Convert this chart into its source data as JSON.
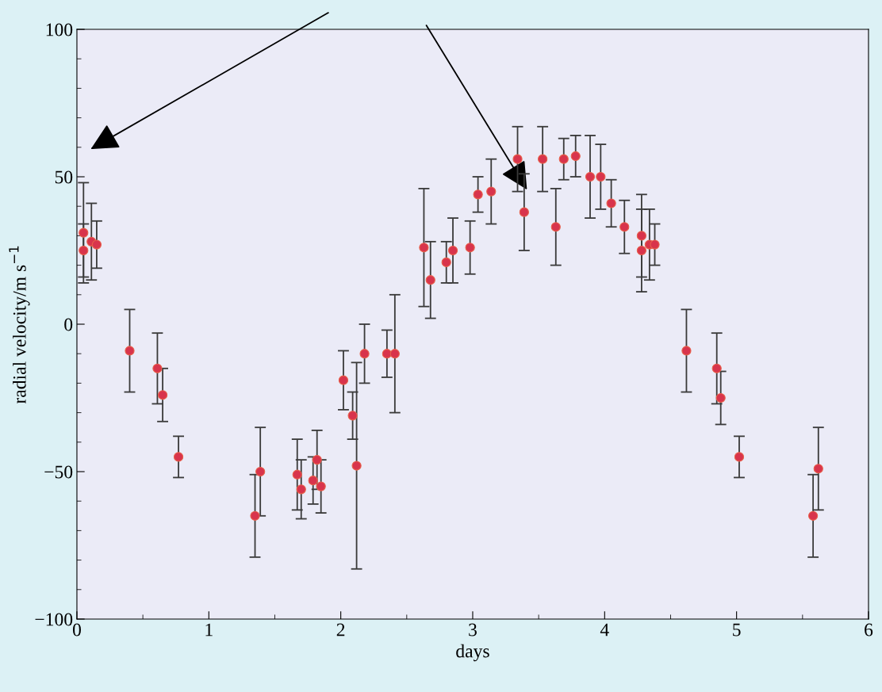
{
  "chart_data": {
    "type": "scatter",
    "xlabel": "days",
    "ylabel": "radial velocity/m s$^{−1}$",
    "xlim": [
      0,
      6
    ],
    "ylim": [
      -100,
      100
    ],
    "xticks": [
      0,
      1,
      2,
      3,
      4,
      5,
      6
    ],
    "yticks": [
      {
        "value": -100,
        "label": "−100"
      },
      {
        "value": -50,
        "label": "−50"
      },
      0,
      50,
      100
    ],
    "marker": "circle",
    "grid": false,
    "legend": false,
    "series": [
      {
        "color": "#d8344c",
        "x": [
          0.05,
          0.05,
          0.11,
          0.15,
          0.4,
          0.61,
          0.65,
          0.77,
          1.35,
          1.39,
          1.67,
          1.7,
          1.79,
          1.82,
          1.85,
          2.02,
          2.09,
          2.12,
          2.18,
          2.35,
          2.41,
          2.63,
          2.68,
          2.8,
          2.85,
          2.98,
          3.04,
          3.14,
          3.34,
          3.39,
          3.53,
          3.63,
          3.69,
          3.78,
          3.89,
          3.97,
          4.05,
          4.15,
          4.28,
          4.28,
          4.34,
          4.38,
          4.62,
          4.85,
          4.88,
          5.02,
          5.58,
          5.62
        ],
        "values": [
          31,
          25,
          28,
          27,
          -9,
          -15,
          -24,
          -45,
          -65,
          -50,
          -51,
          -56,
          -53,
          -46,
          -55,
          -19,
          -31,
          -48,
          -10,
          -10,
          -10,
          26,
          15,
          21,
          25,
          26,
          44,
          45,
          56,
          38,
          56,
          33,
          56,
          57,
          50,
          50,
          41,
          33,
          30,
          25,
          27,
          27,
          -9,
          -15,
          -25,
          -45,
          -65,
          -49
        ],
        "errors": [
          17,
          9,
          13,
          8,
          14,
          12,
          9,
          7,
          14,
          15,
          12,
          10,
          8,
          10,
          9,
          10,
          8,
          35,
          10,
          8,
          20,
          20,
          13,
          7,
          11,
          9,
          6,
          11,
          11,
          13,
          11,
          13,
          7,
          7,
          14,
          11,
          8,
          9,
          14,
          14,
          12,
          7,
          14,
          12,
          9,
          7,
          14,
          14
        ]
      }
    ]
  }
}
